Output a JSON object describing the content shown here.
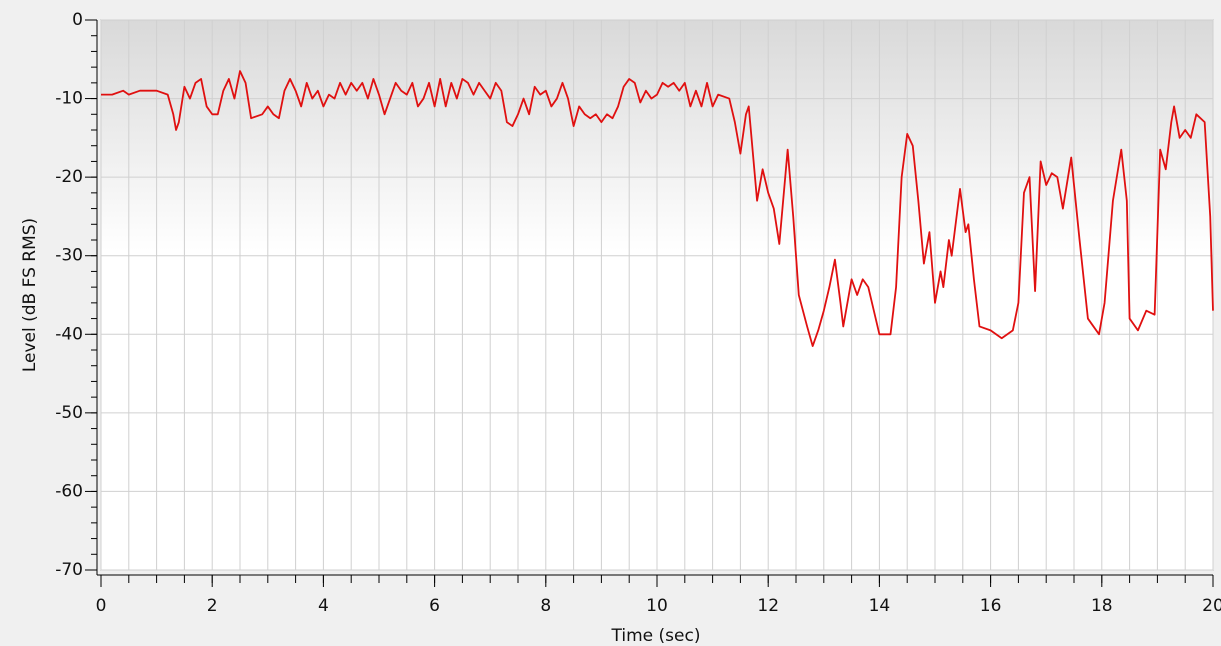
{
  "chart_data": {
    "type": "line",
    "xlabel": "Time (sec)",
    "ylabel": "Level (dB FS RMS)",
    "color": "#e01010",
    "xlim": [
      0,
      20
    ],
    "ylim": [
      -70,
      0
    ],
    "xticks": [
      0,
      2,
      4,
      6,
      8,
      10,
      12,
      14,
      16,
      18,
      20
    ],
    "yticks": [
      -70,
      -60,
      -50,
      -40,
      -30,
      -20,
      -10,
      0
    ],
    "x_minor_step": 0.5,
    "y_minor_step": 2,
    "grid": true,
    "x": [
      0,
      0.2,
      0.4,
      0.5,
      0.7,
      1.0,
      1.2,
      1.3,
      1.35,
      1.4,
      1.5,
      1.6,
      1.7,
      1.8,
      1.9,
      2.0,
      2.1,
      2.2,
      2.3,
      2.4,
      2.5,
      2.6,
      2.7,
      2.9,
      3.0,
      3.1,
      3.2,
      3.3,
      3.4,
      3.5,
      3.6,
      3.7,
      3.8,
      3.9,
      4.0,
      4.1,
      4.2,
      4.3,
      4.4,
      4.5,
      4.6,
      4.7,
      4.8,
      4.9,
      5.0,
      5.1,
      5.2,
      5.3,
      5.4,
      5.5,
      5.6,
      5.7,
      5.8,
      5.9,
      6.0,
      6.1,
      6.2,
      6.3,
      6.4,
      6.5,
      6.6,
      6.7,
      6.8,
      6.9,
      7.0,
      7.1,
      7.2,
      7.3,
      7.4,
      7.5,
      7.6,
      7.7,
      7.8,
      7.9,
      8.0,
      8.1,
      8.2,
      8.3,
      8.4,
      8.5,
      8.6,
      8.7,
      8.8,
      8.9,
      9.0,
      9.1,
      9.2,
      9.3,
      9.4,
      9.5,
      9.6,
      9.7,
      9.8,
      9.9,
      10.0,
      10.1,
      10.2,
      10.3,
      10.4,
      10.5,
      10.6,
      10.7,
      10.8,
      10.9,
      11.0,
      11.1,
      11.3,
      11.4,
      11.5,
      11.6,
      11.65,
      11.7,
      11.8,
      11.9,
      12.0,
      12.1,
      12.2,
      12.35,
      12.45,
      12.55,
      12.7,
      12.8,
      12.9,
      13.0,
      13.1,
      13.2,
      13.3,
      13.35,
      13.5,
      13.6,
      13.7,
      13.8,
      13.9,
      14.0,
      14.2,
      14.3,
      14.4,
      14.5,
      14.6,
      14.7,
      14.8,
      14.9,
      15.0,
      15.1,
      15.15,
      15.25,
      15.3,
      15.45,
      15.55,
      15.6,
      15.7,
      15.8,
      16.0,
      16.2,
      16.4,
      16.5,
      16.6,
      16.7,
      16.8,
      16.9,
      17.0,
      17.1,
      17.2,
      17.3,
      17.45,
      17.6,
      17.75,
      17.85,
      17.95,
      18.05,
      18.2,
      18.35,
      18.45,
      18.5,
      18.65,
      18.8,
      18.95,
      19.05,
      19.15,
      19.25,
      19.3,
      19.4,
      19.5,
      19.6,
      19.7,
      19.85,
      19.95,
      20.0
    ],
    "values": [
      -9.5,
      -9.5,
      -9,
      -9.5,
      -9,
      -9,
      -9.5,
      -12,
      -14,
      -13,
      -8.5,
      -10,
      -8,
      -7.5,
      -11,
      -12,
      -12,
      -9,
      -7.5,
      -10,
      -6.5,
      -8,
      -12.5,
      -12,
      -11,
      -12,
      -12.5,
      -9,
      -7.5,
      -9,
      -11,
      -8,
      -10,
      -9,
      -11,
      -9.5,
      -10,
      -8,
      -9.5,
      -8,
      -9,
      -8,
      -10,
      -7.5,
      -9.5,
      -12,
      -10,
      -8,
      -9,
      -9.5,
      -8,
      -11,
      -10,
      -8,
      -11,
      -7.5,
      -11,
      -8,
      -10,
      -7.5,
      -8,
      -9.5,
      -8,
      -9,
      -10,
      -8,
      -9,
      -13,
      -13.5,
      -12,
      -10,
      -12,
      -8.5,
      -9.5,
      -9,
      -11,
      -10,
      -8,
      -10,
      -13.5,
      -11,
      -12,
      -12.5,
      -12,
      -13,
      -12,
      -12.5,
      -11,
      -8.5,
      -7.5,
      -8,
      -10.5,
      -9,
      -10,
      -9.5,
      -8,
      -8.5,
      -8,
      -9,
      -8,
      -11,
      -9,
      -11,
      -8,
      -11,
      -9.5,
      -10,
      -13,
      -17,
      -12,
      -11,
      -15,
      -23,
      -19,
      -22,
      -24,
      -28.5,
      -16.5,
      -25,
      -35,
      -39,
      -41.5,
      -39.5,
      -37,
      -34,
      -30.5,
      -36,
      -39,
      -33,
      -35,
      -33,
      -34,
      -37,
      -40,
      -40,
      -34,
      -20,
      -14.5,
      -16,
      -23,
      -31,
      -27,
      -36,
      -32,
      -34,
      -28,
      -30,
      -21.5,
      -27,
      -26,
      -33,
      -39,
      -39.5,
      -40.5,
      -39.5,
      -36,
      -22,
      -20,
      -34.5,
      -18,
      -21,
      -19.5,
      -20,
      -24,
      -17.5,
      -28,
      -38,
      -39,
      -40,
      -36,
      -23,
      -16.5,
      -23,
      -38,
      -39.5,
      -37,
      -37.5,
      -16.5,
      -19,
      -13,
      -11,
      -15,
      -14,
      -15,
      -12,
      -13,
      -25,
      -37
    ]
  }
}
